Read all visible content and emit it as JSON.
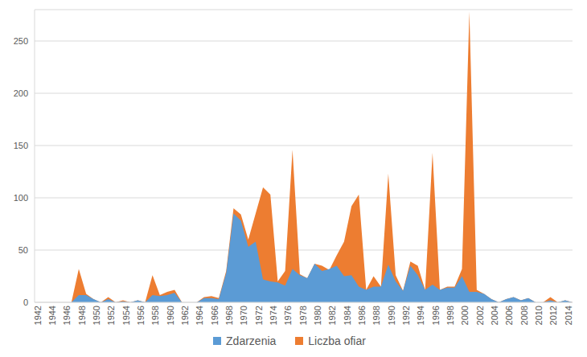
{
  "chart_data": {
    "type": "area",
    "categories": [
      "1942",
      null,
      "1944",
      null,
      "1946",
      null,
      "1948",
      null,
      "1950",
      null,
      "1952",
      null,
      "1954",
      null,
      "1956",
      null,
      "1958",
      null,
      "1960",
      null,
      "1962",
      null,
      "1964",
      null,
      "1966",
      null,
      "1968",
      null,
      "1970",
      null,
      "1972",
      null,
      "1974",
      null,
      "1976",
      null,
      "1978",
      null,
      "1980",
      null,
      "1982",
      null,
      "1984",
      null,
      "1986",
      null,
      "1988",
      null,
      "1990",
      null,
      "1992",
      null,
      "1994",
      null,
      "1996",
      null,
      "1998",
      null,
      "2000",
      null,
      "2002",
      null,
      "2004",
      null,
      "2006",
      null,
      "2008",
      null,
      "2010",
      null,
      "2012",
      null,
      "2014",
      null
    ],
    "series": [
      {
        "name": "Zdarzenia",
        "color": "#5b9bd5",
        "values": [
          0,
          0,
          0,
          0,
          0,
          0,
          7,
          7,
          3,
          0,
          3,
          0,
          1,
          0,
          2,
          0,
          7,
          6,
          7,
          9,
          0,
          0,
          0,
          4,
          4,
          3,
          28,
          85,
          78,
          53,
          58,
          22,
          20,
          19,
          16,
          32,
          26,
          23,
          37,
          30,
          32,
          35,
          25,
          26,
          15,
          12,
          15,
          15,
          36,
          20,
          11,
          35,
          26,
          12,
          17,
          12,
          14,
          14,
          25,
          10,
          10,
          8,
          3,
          0,
          3,
          5,
          2,
          4,
          0,
          0,
          2,
          0,
          2,
          0
        ]
      },
      {
        "name": "Liczba ofiar",
        "color": "#ed7d31",
        "values": [
          0,
          0,
          0,
          0,
          0,
          0,
          32,
          8,
          3,
          0,
          5,
          0,
          2,
          0,
          2,
          0,
          26,
          7,
          10,
          12,
          0,
          0,
          0,
          5,
          6,
          4,
          30,
          90,
          84,
          60,
          85,
          110,
          103,
          20,
          30,
          146,
          27,
          23,
          37,
          35,
          31,
          45,
          58,
          92,
          103,
          12,
          25,
          15,
          123,
          26,
          11,
          39,
          35,
          12,
          143,
          12,
          15,
          15,
          32,
          278,
          12,
          8,
          3,
          0,
          3,
          5,
          2,
          4,
          0,
          0,
          5,
          0,
          2,
          0
        ]
      }
    ],
    "ylim": [
      0,
      280
    ],
    "yticks": [
      0,
      50,
      100,
      150,
      200,
      250
    ],
    "grid": true,
    "legend": "bottom",
    "stacked": false
  }
}
